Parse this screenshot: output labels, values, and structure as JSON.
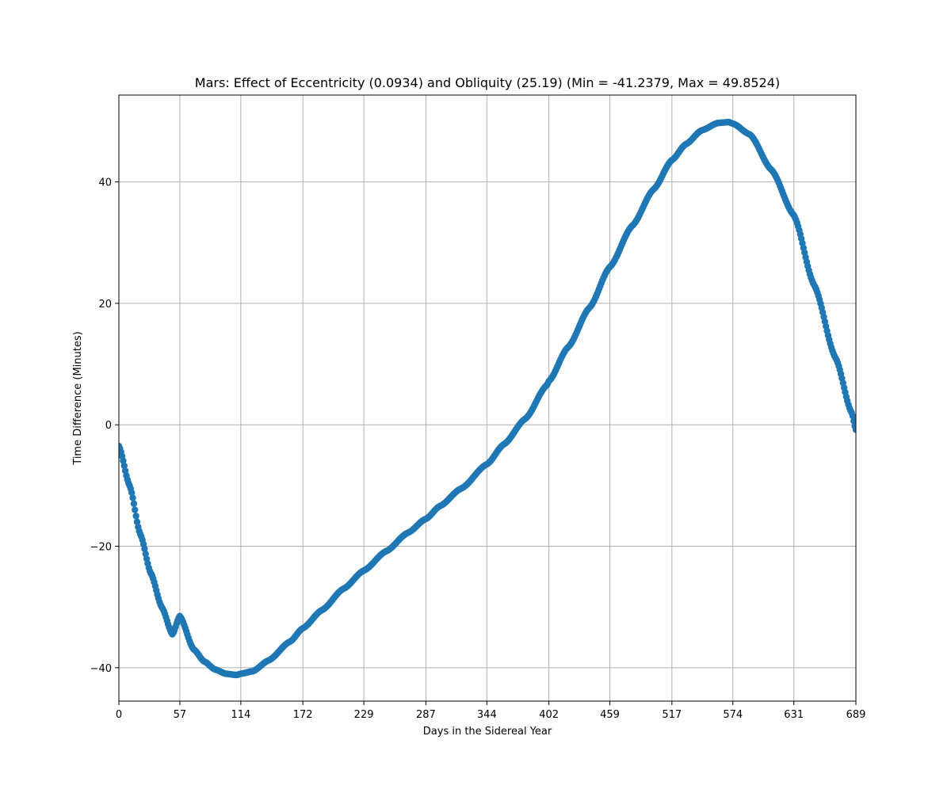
{
  "chart_data": {
    "type": "scatter",
    "title": "Mars: Effect of Eccentricity (0.0934) and Obliquity (25.19) (Min = -41.2379, Max = 49.8524)",
    "xlabel": "Days in the Sidereal Year",
    "ylabel": "Time Difference (Minutes)",
    "xlim": [
      0,
      689
    ],
    "ylim": [
      -45.5,
      54.3
    ],
    "x_ticks": [
      0,
      57,
      114,
      172,
      229,
      287,
      344,
      402,
      459,
      517,
      574,
      631,
      689
    ],
    "y_ticks": [
      -40,
      -20,
      0,
      20,
      40
    ],
    "y_tick_labels": [
      "−40",
      "−20",
      "0",
      "20",
      "40"
    ],
    "grid": true,
    "marker_color": "#1f77b4",
    "series": [
      {
        "x": [
          0,
          10,
          20,
          30,
          40,
          50,
          57,
          70,
          80,
          90,
          100,
          110,
          114,
          125,
          140,
          160,
          172,
          190,
          210,
          229,
          250,
          270,
          287,
          300,
          320,
          344,
          360,
          380,
          400,
          402,
          420,
          440,
          459,
          480,
          500,
          517,
          530,
          545,
          560,
          570,
          574,
          590,
          610,
          631,
          650,
          670,
          685,
          689
        ],
        "y": [
          -3.5,
          -10.0,
          -18.0,
          -24.5,
          -30.0,
          -34.5,
          -31.5,
          -37.0,
          -39.0,
          -40.3,
          -41.0,
          -41.2,
          -41.0,
          -40.6,
          -38.8,
          -35.7,
          -33.5,
          -30.5,
          -27.0,
          -24.0,
          -20.8,
          -17.8,
          -15.5,
          -13.4,
          -10.5,
          -6.5,
          -3.2,
          1.0,
          6.5,
          7.2,
          12.8,
          19.3,
          26.0,
          32.8,
          38.8,
          43.6,
          46.2,
          48.5,
          49.7,
          49.85,
          49.6,
          47.8,
          42.0,
          34.5,
          23.0,
          11.0,
          2.0,
          -0.8
        ]
      }
    ]
  }
}
